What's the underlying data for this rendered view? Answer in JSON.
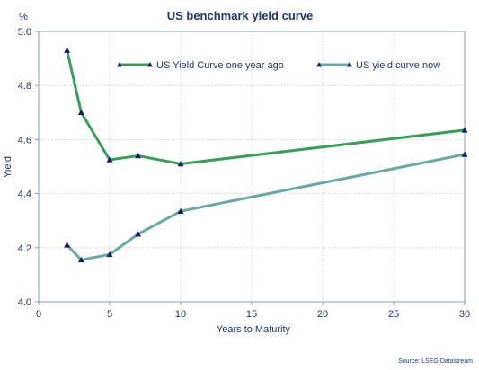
{
  "chart_data": {
    "type": "line",
    "title": "US benchmark yield curve",
    "unit_label": "%",
    "xlabel": "Years to Maturity",
    "ylabel": "Yield",
    "xlim": [
      0,
      30
    ],
    "ylim": [
      4.0,
      5.0
    ],
    "x_ticks": [
      "0",
      "5",
      "10",
      "15",
      "20",
      "25",
      "30"
    ],
    "y_ticks": [
      "4.0",
      "4.2",
      "4.4",
      "4.6",
      "4.8",
      "5.0"
    ],
    "grid": true,
    "legend_position": "top-right",
    "series": [
      {
        "name": "US Yield Curve one year ago",
        "color": "#3a9e5a",
        "x": [
          2,
          3,
          5,
          7,
          10,
          30
        ],
        "y": [
          4.93,
          4.7,
          4.525,
          4.54,
          4.51,
          4.635
        ]
      },
      {
        "name": "US yield curve now",
        "color": "#6aa8a4",
        "x": [
          2,
          3,
          5,
          7,
          10,
          30
        ],
        "y": [
          4.21,
          4.155,
          4.175,
          4.25,
          4.335,
          4.545
        ]
      }
    ],
    "marker_color": "#1a1a6e",
    "source": "Source: LSEG Datastream"
  }
}
